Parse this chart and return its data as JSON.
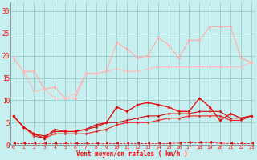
{
  "xlabel": "Vent moyen/en rafales ( km/h )",
  "xlim": [
    0,
    23
  ],
  "ylim": [
    0,
    32
  ],
  "yticks": [
    0,
    5,
    10,
    15,
    20,
    25,
    30
  ],
  "xticks": [
    0,
    1,
    2,
    3,
    4,
    5,
    6,
    7,
    8,
    9,
    10,
    11,
    12,
    13,
    14,
    15,
    16,
    17,
    18,
    19,
    20,
    21,
    22,
    23
  ],
  "bg_color": "#c8efef",
  "grid_color": "#99cccc",
  "series": [
    {
      "x": [
        0,
        1,
        2,
        3,
        4,
        5,
        6,
        7,
        8,
        9,
        10,
        11,
        12,
        13,
        14,
        15,
        16,
        17,
        18,
        19,
        20,
        21,
        22,
        23
      ],
      "y": [
        19.5,
        16.5,
        16.5,
        12.5,
        13.0,
        10.5,
        10.5,
        16.0,
        16.0,
        16.5,
        23.0,
        21.5,
        19.5,
        20.0,
        24.0,
        22.5,
        19.5,
        23.5,
        23.5,
        26.5,
        26.5,
        26.5,
        19.5,
        18.5
      ],
      "color": "#ffaaaa",
      "marker": "D",
      "markersize": 1.8,
      "linewidth": 0.8,
      "zorder": 2,
      "linestyle": "solid"
    },
    {
      "x": [
        0,
        1,
        2,
        3,
        4,
        5,
        6,
        7,
        8,
        9,
        10,
        11,
        12,
        13,
        14,
        15,
        16,
        17,
        18,
        19,
        20,
        21,
        22,
        23
      ],
      "y": [
        19.5,
        16.5,
        12.0,
        12.5,
        10.5,
        10.5,
        11.5,
        16.0,
        16.0,
        16.5,
        17.0,
        16.5,
        16.5,
        17.0,
        17.5,
        17.5,
        17.5,
        17.5,
        17.5,
        17.5,
        17.5,
        17.5,
        17.5,
        18.5
      ],
      "color": "#ffbbbb",
      "marker": "D",
      "markersize": 1.5,
      "linewidth": 0.8,
      "zorder": 2,
      "linestyle": "solid"
    },
    {
      "x": [
        0,
        1,
        2,
        3,
        4,
        5,
        6,
        7,
        8,
        9,
        10,
        11,
        12,
        13,
        14,
        15,
        16,
        17,
        18,
        19,
        20,
        21,
        22,
        23
      ],
      "y": [
        6.5,
        4.0,
        2.5,
        1.5,
        3.5,
        3.0,
        3.0,
        3.5,
        4.5,
        5.0,
        8.5,
        7.5,
        9.0,
        9.5,
        9.0,
        8.5,
        7.5,
        7.5,
        10.5,
        8.5,
        5.5,
        7.0,
        6.0,
        6.5
      ],
      "color": "#dd1111",
      "marker": "D",
      "markersize": 1.8,
      "linewidth": 1.0,
      "zorder": 3,
      "linestyle": "solid"
    },
    {
      "x": [
        0,
        1,
        2,
        3,
        4,
        5,
        6,
        7,
        8,
        9,
        10,
        11,
        12,
        13,
        14,
        15,
        16,
        17,
        18,
        19,
        20,
        21,
        22,
        23
      ],
      "y": [
        6.5,
        4.0,
        2.5,
        2.0,
        3.0,
        3.0,
        3.0,
        3.5,
        4.0,
        5.0,
        5.0,
        5.5,
        6.0,
        6.5,
        6.5,
        7.0,
        7.0,
        7.0,
        7.5,
        7.5,
        7.5,
        6.0,
        6.0,
        6.5
      ],
      "color": "#cc1111",
      "marker": "D",
      "markersize": 1.5,
      "linewidth": 0.8,
      "zorder": 2,
      "linestyle": "solid"
    },
    {
      "x": [
        0,
        1,
        2,
        3,
        4,
        5,
        6,
        7,
        8,
        9,
        10,
        11,
        12,
        13,
        14,
        15,
        16,
        17,
        18,
        19,
        20,
        21,
        22,
        23
      ],
      "y": [
        6.5,
        4.0,
        2.0,
        1.5,
        2.5,
        2.5,
        2.5,
        2.5,
        3.0,
        3.5,
        4.5,
        5.0,
        5.0,
        5.0,
        5.5,
        6.0,
        6.0,
        6.5,
        6.5,
        6.5,
        6.5,
        5.5,
        5.5,
        6.5
      ],
      "color": "#ee2222",
      "marker": "D",
      "markersize": 1.5,
      "linewidth": 0.8,
      "zorder": 2,
      "linestyle": "solid"
    },
    {
      "x": [
        0,
        1,
        2,
        3,
        4,
        5,
        6,
        7,
        8,
        9,
        10,
        11,
        12,
        13,
        14,
        15,
        16,
        17,
        18,
        19,
        20,
        21,
        22,
        23
      ],
      "y": [
        0.3,
        0.3,
        0.3,
        0.3,
        0.3,
        0.3,
        0.3,
        0.3,
        0.3,
        0.3,
        0.3,
        0.3,
        0.3,
        0.3,
        0.3,
        0.3,
        0.4,
        0.5,
        0.5,
        0.5,
        0.4,
        0.3,
        0.3,
        0.3
      ],
      "color": "#dd1111",
      "marker": 4,
      "markersize": 3.0,
      "linewidth": 0.6,
      "zorder": 1,
      "linestyle": "dashed"
    }
  ]
}
